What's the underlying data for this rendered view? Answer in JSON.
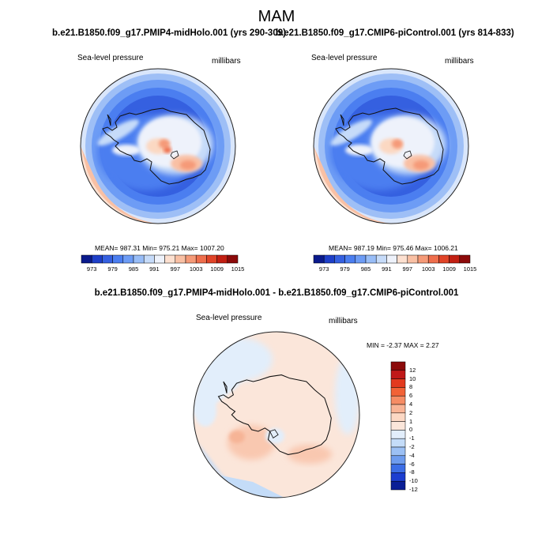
{
  "header": {
    "season": "MAM",
    "run_left": "b.e21.B1850.f09_g17.PMIP4-midHolo.001 (yrs 290-309)",
    "run_right": "b.e21.B1850.f09_g17.CMIP6-piControl.001 (yrs 814-833)",
    "diff_title": "b.e21.B1850.f09_g17.PMIP4-midHolo.001 - b.e21.B1850.f09_g17.CMIP6-piControl.001"
  },
  "chart_data": [
    {
      "type": "heatmap",
      "name": "midHolo",
      "variable": "Sea-level pressure",
      "units": "millibars",
      "projection": "polar stereographic (south)",
      "stats_text": "MEAN= 987.31  Min= 975.21  Max= 1007.20",
      "mean": 987.31,
      "min": 975.21,
      "max": 1007.2,
      "colorbar_levels": [
        "973",
        "979",
        "985",
        "991",
        "997",
        "1003",
        "1009",
        "1015"
      ]
    },
    {
      "type": "heatmap",
      "name": "piControl",
      "variable": "Sea-level pressure",
      "units": "millibars",
      "projection": "polar stereographic (south)",
      "stats_text": "MEAN= 987.19  Min= 975.46  Max= 1006.21",
      "mean": 987.19,
      "min": 975.46,
      "max": 1006.21,
      "colorbar_levels": [
        "973",
        "979",
        "985",
        "991",
        "997",
        "1003",
        "1009",
        "1015"
      ]
    },
    {
      "type": "heatmap",
      "name": "difference",
      "variable": "Sea-level pressure",
      "units": "millibars",
      "projection": "polar stereographic (south)",
      "stats_text": "MIN = -2.37 MAX =   2.27",
      "min": -2.37,
      "max": 2.27,
      "colorbar_levels": [
        "12",
        "10",
        "8",
        "6",
        "4",
        "2",
        "1",
        "0",
        "-1",
        "-2",
        "-4",
        "-6",
        "-8",
        "-10",
        "-12"
      ]
    }
  ],
  "colors": {
    "abs_scale": [
      "#0a1a8c",
      "#1e3fc8",
      "#3560e0",
      "#4b7ef0",
      "#6d9cf5",
      "#98bdf7",
      "#c6dbf9",
      "#eef2fb",
      "#fde0d0",
      "#f9c0a4",
      "#f59a78",
      "#ee6e4c",
      "#e04428",
      "#c21f12",
      "#8c0a0a"
    ],
    "diff_scale": [
      "#8c0a0a",
      "#c01818",
      "#e23a1e",
      "#f26236",
      "#f68c64",
      "#f9b496",
      "#fcd8c4",
      "#fbe6da",
      "#e2eefb",
      "#c4dcf8",
      "#9cc0f4",
      "#6e9cee",
      "#3c6ee6",
      "#1c3ed0",
      "#0a1e96"
    ],
    "land_outline": "#111111"
  }
}
